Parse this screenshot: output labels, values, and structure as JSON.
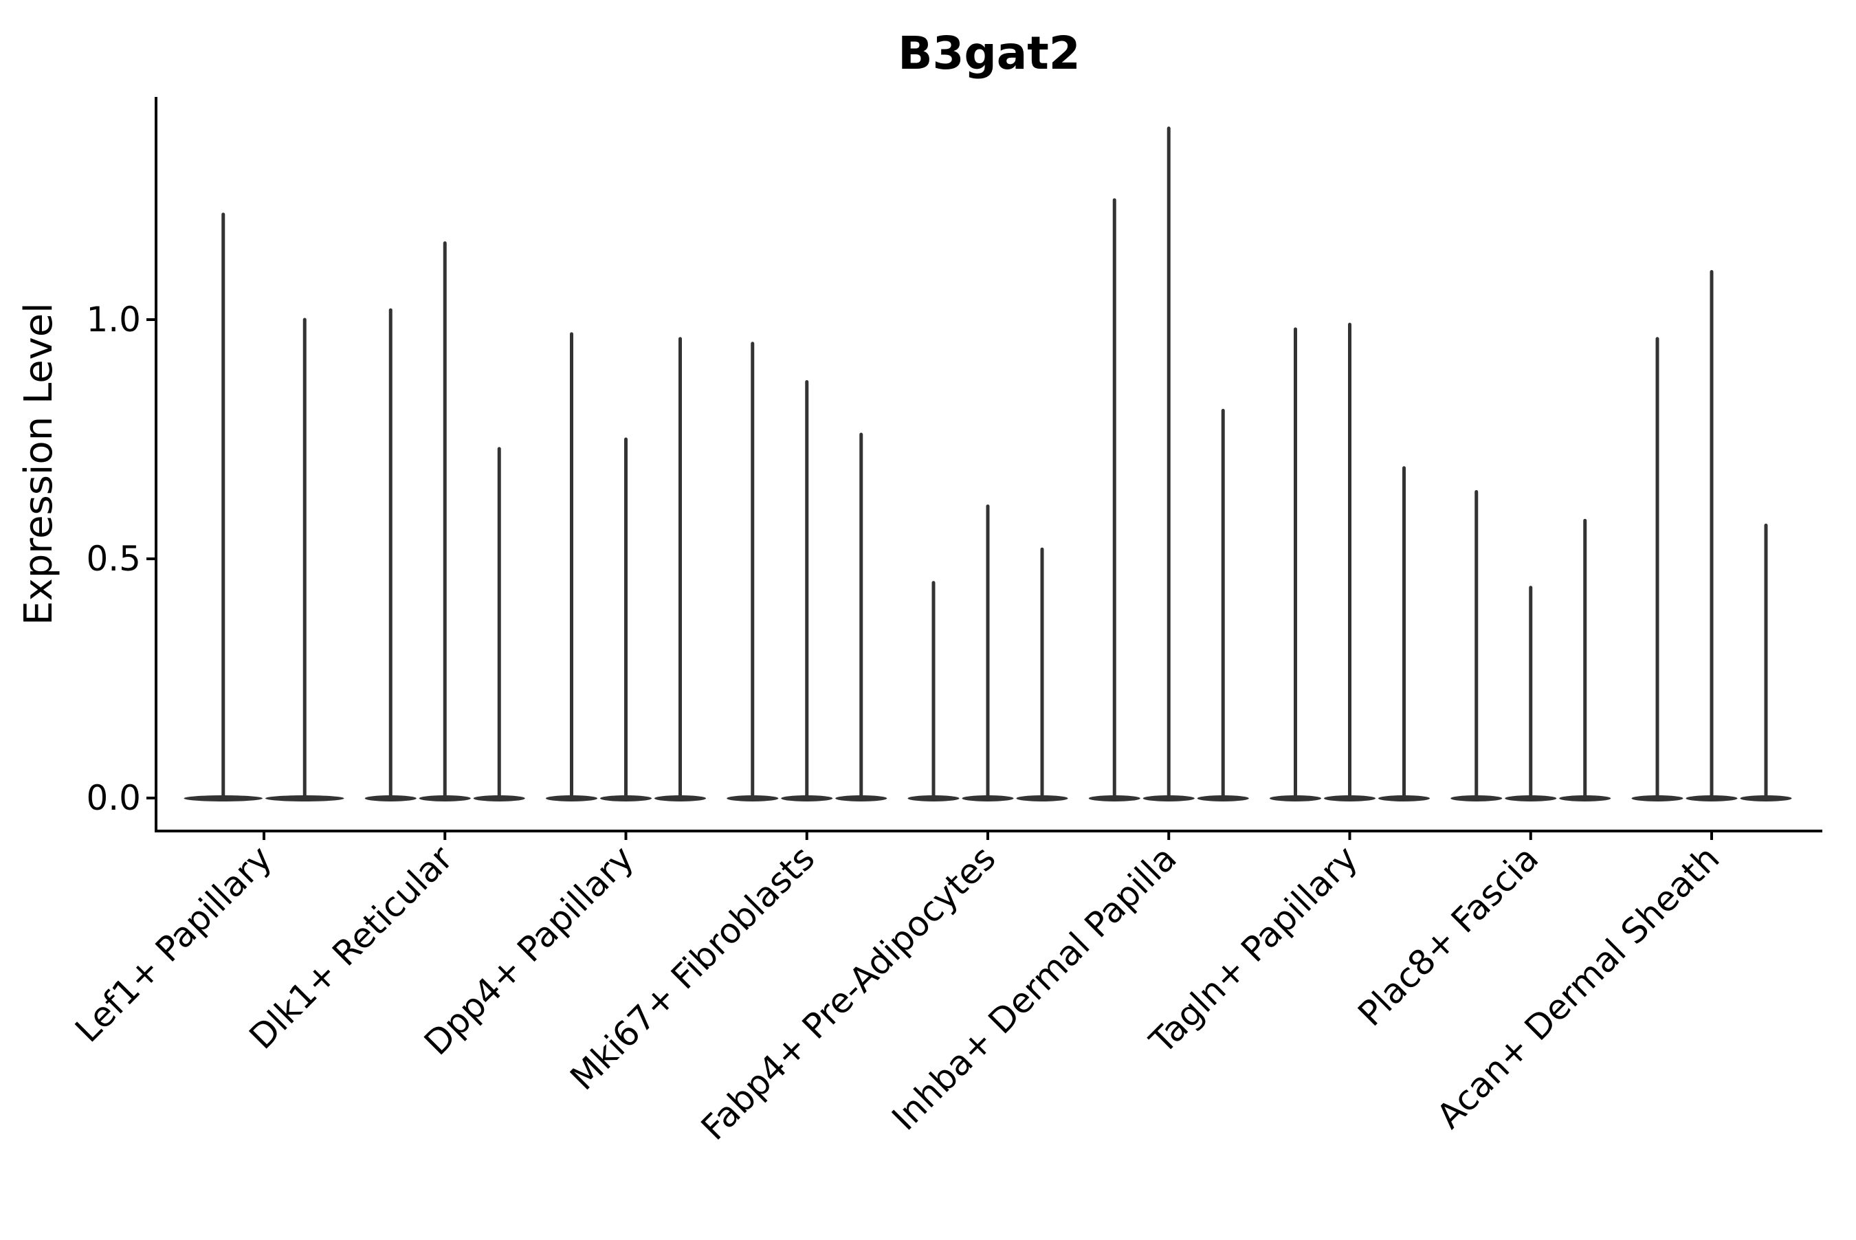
{
  "chart_data": {
    "type": "violin",
    "title": "B3gat2",
    "ylabel": "Expression Level",
    "xlabel": "",
    "ylim": [
      -0.07,
      1.47
    ],
    "yticks": [
      0.0,
      0.5,
      1.0
    ],
    "ytick_labels": [
      "0.0",
      "0.5",
      "1.0"
    ],
    "grid": false,
    "legend": "none",
    "x_tick_rotation_deg": 45,
    "categories": [
      "Lef1+ Papillary",
      "Dlk1+ Reticular",
      "Dpp4+ Papillary",
      "Mki67+ Fibroblasts",
      "Fabp4+ Pre-Adipocytes",
      "Inhba+ Dermal Papilla",
      "Tagln+ Papillary",
      "Plac8+ Fascia",
      "Acan+ Dermal Sheath"
    ],
    "groups": [
      {
        "category": "Lef1+ Papillary",
        "violin_max_expression": [
          1.22,
          1.0
        ]
      },
      {
        "category": "Dlk1+ Reticular",
        "violin_max_expression": [
          1.02,
          1.16,
          0.73
        ]
      },
      {
        "category": "Dpp4+ Papillary",
        "violin_max_expression": [
          0.97,
          0.75,
          0.96
        ]
      },
      {
        "category": "Mki67+ Fibroblasts",
        "violin_max_expression": [
          0.95,
          0.87,
          0.76
        ]
      },
      {
        "category": "Fabp4+ Pre-Adipocytes",
        "violin_max_expression": [
          0.45,
          0.61,
          0.52
        ]
      },
      {
        "category": "Inhba+ Dermal Papilla",
        "violin_max_expression": [
          1.25,
          1.4,
          0.81
        ]
      },
      {
        "category": "Tagln+ Papillary",
        "violin_max_expression": [
          0.98,
          0.99,
          0.69
        ]
      },
      {
        "category": "Plac8+ Fascia",
        "violin_max_expression": [
          0.64,
          0.44,
          0.58
        ]
      },
      {
        "category": "Acan+ Dermal Sheath",
        "violin_max_expression": [
          0.96,
          1.1,
          0.57
        ]
      }
    ],
    "violin_shape_note": "each violin is a near-zero density body: flat lens at expression 0 plus a thin vertical spike up to its max expression",
    "colors": {
      "violin": "#333333",
      "axis": "#000000",
      "text": "#000000",
      "background": "#ffffff"
    }
  }
}
